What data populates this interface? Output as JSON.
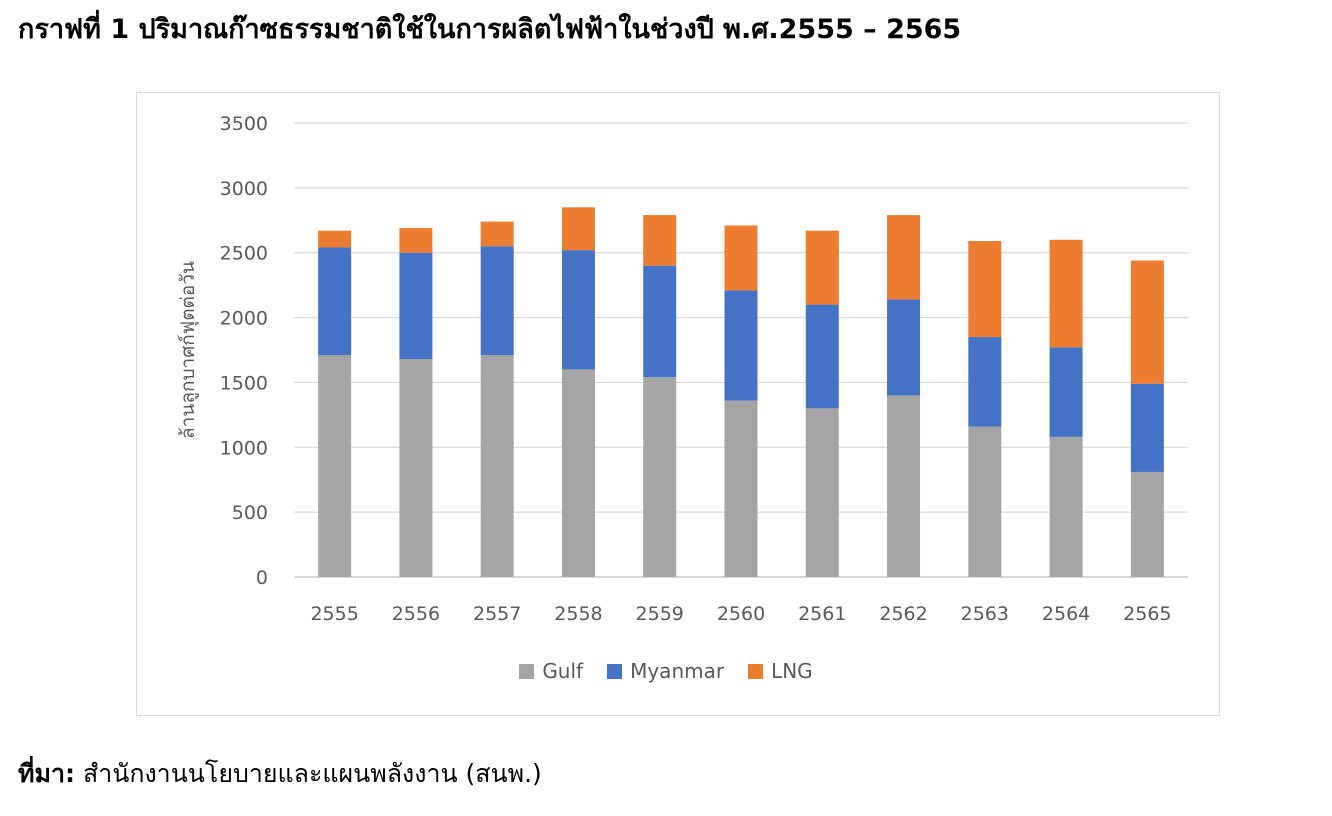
{
  "title": "กราฟที่ 1 ปริมาณก๊าซธรรมชาติใช้ในการผลิตไฟฟ้าในช่วงปี พ.ศ.2555 – 2565",
  "source": {
    "label": "ที่มา:",
    "text": " สำนักงานนโยบายและแผนพลังงาน (สนพ.)"
  },
  "chart_data": {
    "type": "bar",
    "stacked": true,
    "title": "",
    "xlabel": "",
    "ylabel": "ล้านลูกบาศก์ฟุตต่อวัน",
    "ylim": [
      0,
      3500
    ],
    "yticks": [
      0,
      500,
      1000,
      1500,
      2000,
      2500,
      3000,
      3500
    ],
    "grid": true,
    "legend_position": "bottom",
    "categories": [
      "2555",
      "2556",
      "2557",
      "2558",
      "2559",
      "2560",
      "2561",
      "2562",
      "2563",
      "2564",
      "2565"
    ],
    "series": [
      {
        "name": "Gulf",
        "color": "#a5a5a5",
        "values": [
          1710,
          1680,
          1710,
          1600,
          1540,
          1360,
          1300,
          1400,
          1160,
          1080,
          810
        ]
      },
      {
        "name": "Myanmar",
        "color": "#4472c4",
        "values": [
          830,
          820,
          840,
          920,
          860,
          850,
          800,
          740,
          690,
          690,
          680
        ]
      },
      {
        "name": "LNG",
        "color": "#ed7d31",
        "values": [
          130,
          190,
          190,
          330,
          390,
          500,
          570,
          650,
          740,
          830,
          950
        ]
      }
    ]
  }
}
